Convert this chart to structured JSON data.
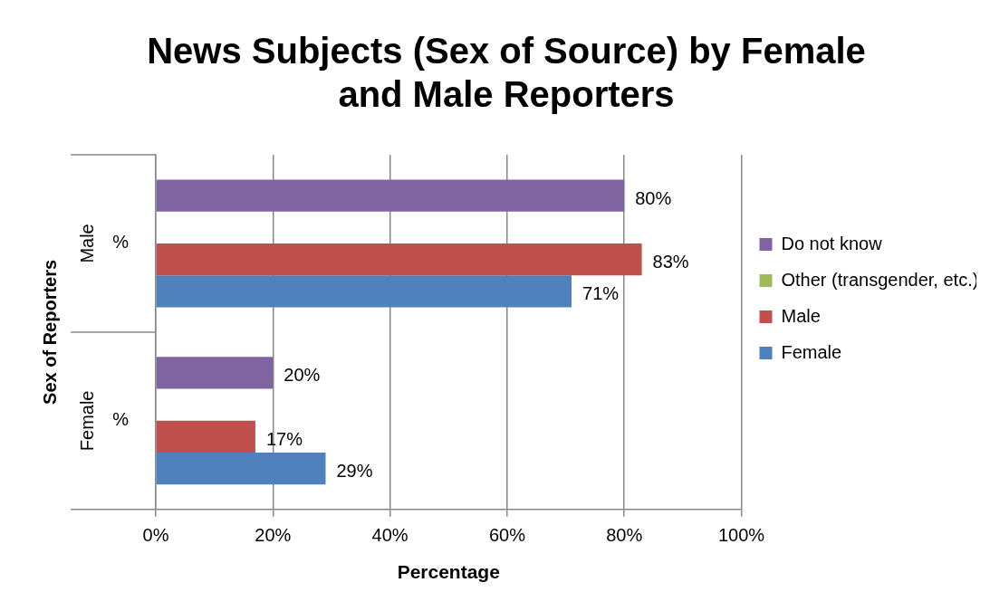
{
  "chart_data": {
    "type": "bar",
    "orientation": "horizontal",
    "title": "News Subjects (Sex of Source) by Female and Male Reporters",
    "xlabel": "Percentage",
    "ylabel": "Sex of Reporters",
    "categories": [
      "%",
      "%"
    ],
    "annotations": [
      "Male",
      "Female"
    ],
    "series": [
      {
        "name": "Do not know",
        "color": "#8064a2",
        "values": [
          80,
          20
        ],
        "value_labels": [
          "80%",
          "20%"
        ]
      },
      {
        "name": "Other (transgender, etc.)",
        "color": "#9bbb59",
        "values": [
          null,
          null
        ]
      },
      {
        "name": "Male",
        "color": "#c0504d",
        "values": [
          83,
          17
        ],
        "value_labels": [
          "83%",
          "17%"
        ]
      },
      {
        "name": "Female",
        "color": "#4f81bd",
        "values": [
          71,
          29
        ],
        "value_labels": [
          "71%",
          "29%"
        ]
      }
    ],
    "xlim": [
      0,
      100
    ],
    "xticks": [
      {
        "value": 0,
        "label": "0%"
      },
      {
        "value": 20,
        "label": "20%"
      },
      {
        "value": 40,
        "label": "40%"
      },
      {
        "value": 60,
        "label": "60%"
      },
      {
        "value": 80,
        "label": "80%"
      },
      {
        "value": 100,
        "label": "100%"
      }
    ],
    "grid": "x",
    "legend": "right"
  }
}
